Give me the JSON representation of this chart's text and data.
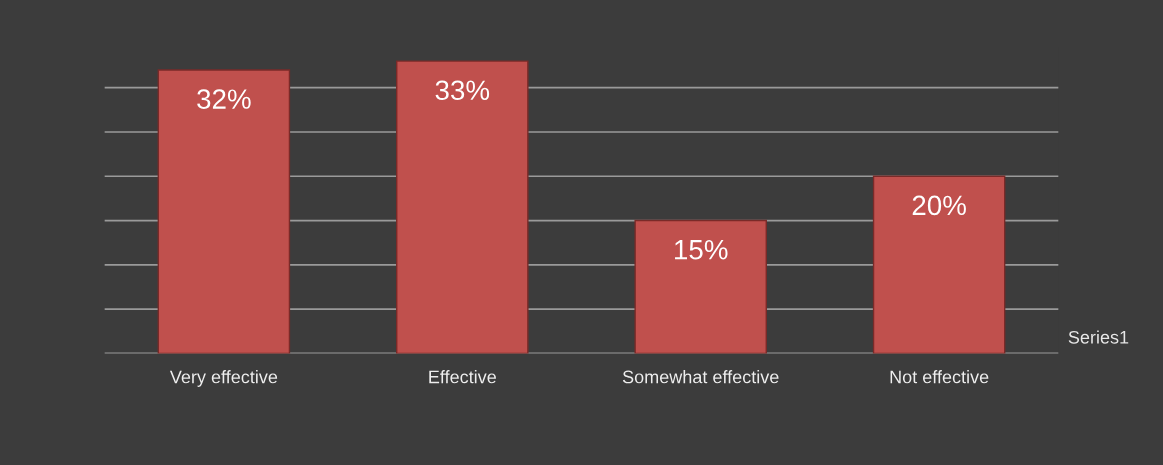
{
  "chart_data": {
    "type": "bar",
    "categories": [
      "Very effective",
      "Effective",
      "Somewhat effective",
      "Not effective"
    ],
    "series": [
      {
        "name": "Series1",
        "color": "#c0504d",
        "values": [
          32,
          33,
          15,
          20
        ],
        "value_labels": [
          "32%",
          "33%",
          "15%",
          "20%"
        ]
      }
    ],
    "data_labels": false,
    "tick_labels": "x",
    "grid": "y",
    "legend": false
  }
}
